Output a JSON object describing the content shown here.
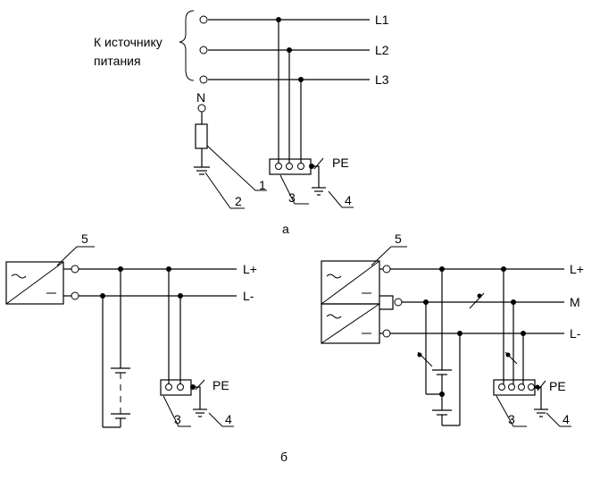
{
  "labels": {
    "source_line1": "К источнику",
    "source_line2": "питания",
    "L1": "L1",
    "L2": "L2",
    "L3": "L3",
    "N": "N",
    "PE_a": "PE",
    "num_1": "1",
    "num_2": "2",
    "num_3_a": "3",
    "num_4_a": "4",
    "caption_a": "а",
    "num_5_left": "5",
    "Lplus_left": "L+",
    "Lminus_left": "L-",
    "PE_b1": "PE",
    "num_3_b1": "3",
    "num_4_b1": "4",
    "num_5_right": "5",
    "Lplus_right": "L+",
    "M": "M",
    "Lminus_right": "L-",
    "PE_b2": "PE",
    "num_3_b2": "3",
    "num_4_b2": "4",
    "caption_b": "б"
  }
}
